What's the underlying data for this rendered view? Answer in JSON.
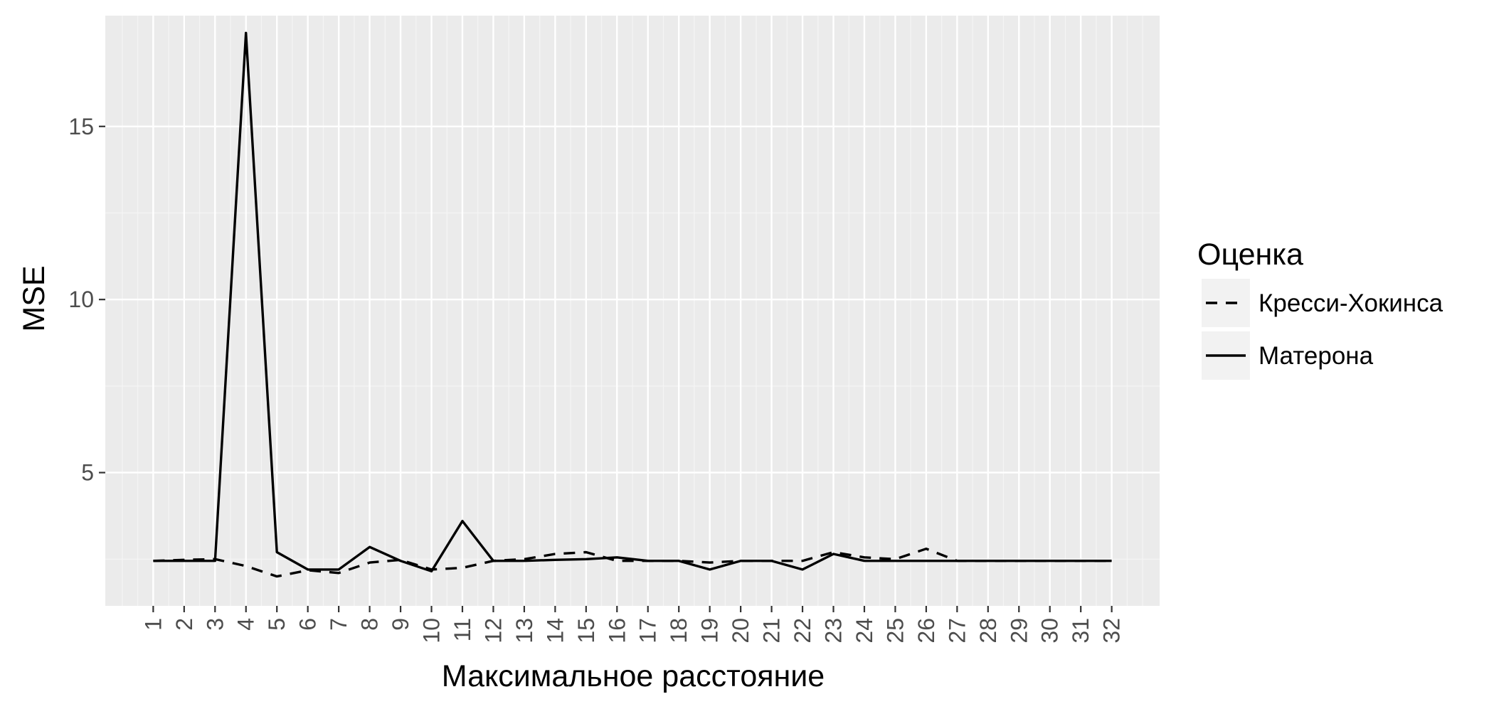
{
  "chart_data": {
    "type": "line",
    "xlabel": "Максимальное расстояние",
    "ylabel": "MSE",
    "x": [
      1,
      2,
      3,
      4,
      5,
      6,
      7,
      8,
      9,
      10,
      11,
      12,
      13,
      14,
      15,
      16,
      17,
      18,
      19,
      20,
      21,
      22,
      23,
      24,
      25,
      26,
      27,
      28,
      29,
      30,
      31,
      32
    ],
    "x_tick_labels": [
      "1",
      "2",
      "3",
      "4",
      "5",
      "6",
      "7",
      "8",
      "9",
      "10",
      "11",
      "12",
      "13",
      "14",
      "15",
      "16",
      "17",
      "18",
      "19",
      "20",
      "21",
      "22",
      "23",
      "24",
      "25",
      "26",
      "27",
      "28",
      "29",
      "30",
      "31",
      "32"
    ],
    "y_ticks": [
      5,
      10,
      15
    ],
    "y_tick_labels": [
      "5",
      "10",
      "15"
    ],
    "ylim": [
      1.15,
      18.2
    ],
    "xlim": [
      -0.55,
      33.55
    ],
    "grid": true,
    "legend_position": "right",
    "legend": {
      "title": "Оценка"
    },
    "series": [
      {
        "name": "Кресси-Хокинса",
        "line_style": "dashed",
        "color": "#000000",
        "values": [
          2.45,
          2.48,
          2.5,
          2.3,
          2.0,
          2.18,
          2.1,
          2.4,
          2.48,
          2.2,
          2.25,
          2.45,
          2.5,
          2.65,
          2.7,
          2.45,
          2.45,
          2.45,
          2.4,
          2.45,
          2.45,
          2.45,
          2.7,
          2.55,
          2.5,
          2.8,
          2.45,
          2.45,
          2.45,
          2.45,
          2.45,
          2.45
        ]
      },
      {
        "name": "Матерона",
        "line_style": "solid",
        "color": "#000000",
        "values": [
          2.45,
          2.45,
          2.45,
          17.7,
          2.7,
          2.2,
          2.2,
          2.85,
          2.45,
          2.15,
          3.6,
          2.45,
          2.45,
          2.48,
          2.5,
          2.55,
          2.45,
          2.45,
          2.2,
          2.45,
          2.45,
          2.2,
          2.65,
          2.45,
          2.45,
          2.45,
          2.45,
          2.45,
          2.45,
          2.45,
          2.45,
          2.45
        ]
      }
    ]
  },
  "colors": {
    "panel_background": "#ebebeb",
    "grid_major": "#ffffff",
    "grid_minor": "#f5f5f5",
    "tick_text": "#4d4d4d",
    "line": "#000000"
  }
}
